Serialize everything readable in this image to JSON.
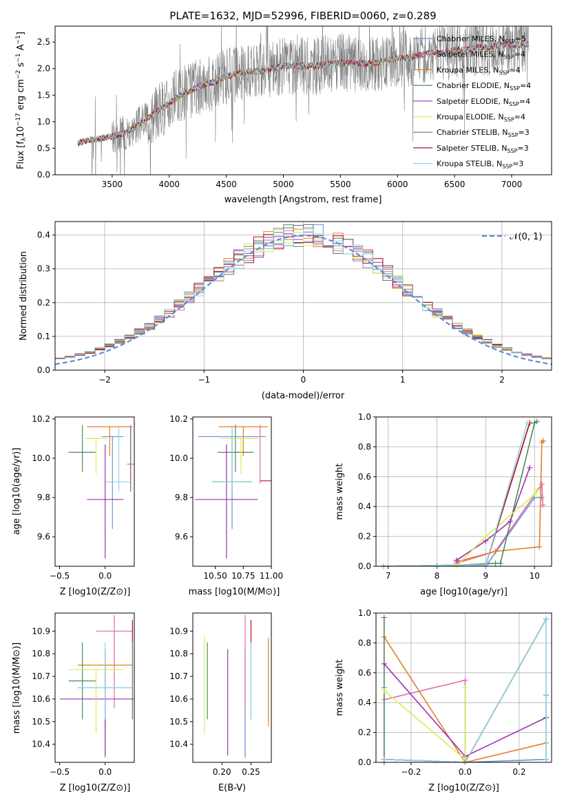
{
  "figure": {
    "title": "PLATE=1632, MJD=52996, FIBERID=0060, z=0.289"
  },
  "colors": {
    "Chabrier MILES": "#6c8ed4",
    "Salpeter MILES": "#e06aa8",
    "Kroupa MILES": "#e67e22",
    "Chabrier ELODIE": "#4e8a5a",
    "Salpeter ELODIE": "#9b30b0",
    "Kroupa ELODIE": "#d4ee52",
    "Chabrier STELIB": "#6e6e6e",
    "Salpeter STELIB": "#b01020",
    "Kroupa STELIB": "#8fd6e6"
  },
  "chart_data": [
    {
      "type": "line",
      "id": "spectrum",
      "title": "PLATE=1632, MJD=52996, FIBERID=0060, z=0.289",
      "xlabel": "wavelength [Angstrom, rest frame]",
      "ylabel": "Flux [f_λ 10^-17 erg cm^-2 s^-1 A^-1]",
      "xlim": [
        3000,
        7350
      ],
      "ylim": [
        0,
        2.8
      ],
      "xticks": [
        "3500",
        "4000",
        "4500",
        "5000",
        "5500",
        "6000",
        "6500",
        "7000"
      ],
      "yticks": [
        "0.0",
        "0.5",
        "1.0",
        "1.5",
        "2.0",
        "2.5"
      ],
      "legend_position": "upper-right",
      "data_series": {
        "name": "data",
        "x": [
          3200,
          3300,
          3400,
          3500,
          3600,
          3700,
          3800,
          3900,
          4000,
          4100,
          4200,
          4300,
          4400,
          4500,
          4600,
          4700,
          4800,
          4900,
          5000,
          5100,
          5200,
          5300,
          5400,
          5500,
          5600,
          5700,
          5800,
          5900,
          6000,
          6100,
          6200,
          6300,
          6400,
          6500,
          6600,
          6700,
          6800,
          6900,
          7000,
          7100
        ],
        "y": [
          0.6,
          0.65,
          0.68,
          0.72,
          0.78,
          0.9,
          1.05,
          1.2,
          1.35,
          1.5,
          1.6,
          1.7,
          1.75,
          1.85,
          1.9,
          1.95,
          1.95,
          2.0,
          2.05,
          2.05,
          2.05,
          2.05,
          2.1,
          2.1,
          2.1,
          2.1,
          2.1,
          2.15,
          2.2,
          2.2,
          2.25,
          2.3,
          2.3,
          2.35,
          2.35,
          2.4,
          2.4,
          2.45,
          2.45,
          2.45
        ]
      },
      "series": [
        {
          "name": "Chabrier MILES",
          "nssp": "5"
        },
        {
          "name": "Salpeter MILES",
          "nssp": "4"
        },
        {
          "name": "Kroupa MILES",
          "nssp": "4"
        },
        {
          "name": "Chabrier ELODIE",
          "nssp": "4"
        },
        {
          "name": "Salpeter ELODIE",
          "nssp": "4"
        },
        {
          "name": "Kroupa ELODIE",
          "nssp": "4"
        },
        {
          "name": "Chabrier STELIB",
          "nssp": "3"
        },
        {
          "name": "Salpeter STELIB",
          "nssp": "3"
        },
        {
          "name": "Kroupa STELIB",
          "nssp": "3"
        }
      ]
    },
    {
      "type": "line",
      "id": "residuals",
      "xlabel": "(data-model)/error",
      "ylabel": "Normed distribution",
      "xlim": [
        -2.5,
        2.5
      ],
      "ylim": [
        0,
        0.44
      ],
      "xticks": [
        "−2",
        "−1",
        "0",
        "1",
        "2"
      ],
      "yticks": [
        "0.0",
        "0.1",
        "0.2",
        "0.3",
        "0.4"
      ],
      "legend": "𝒩(0, 1)",
      "grid": true,
      "bin_width": 0.1
    },
    {
      "type": "scatter",
      "id": "age_vs_Z",
      "xlabel": "Z [log10(Z/Z⊙)]",
      "ylabel": "age [log10(age/yr)]",
      "xlim": [
        -0.55,
        0.32
      ],
      "ylim": [
        9.45,
        10.21
      ],
      "xticks": [
        "−0.5",
        "0.0"
      ],
      "yticks": [
        "9.6",
        "9.8",
        "10.0",
        "10.2"
      ],
      "points": [
        {
          "model": "Chabrier MILES",
          "x": 0.08,
          "y": 10.11,
          "xerr": 0.12,
          "yerr_lo": 0.47,
          "yerr_hi": 0.0
        },
        {
          "model": "Salpeter MILES",
          "x": 0.28,
          "y": 9.97,
          "xerr": 0.04,
          "yerr_lo": 0.1,
          "yerr_hi": 0.2
        },
        {
          "model": "Kroupa MILES",
          "x": 0.05,
          "y": 10.16,
          "xerr": 0.25,
          "yerr_lo": 0.15,
          "yerr_hi": 0.0
        },
        {
          "model": "Chabrier ELODIE",
          "x": -0.25,
          "y": 10.03,
          "xerr": 0.15,
          "yerr_lo": 0.1,
          "yerr_hi": 0.14
        },
        {
          "model": "Salpeter ELODIE",
          "x": 0.0,
          "y": 9.79,
          "xerr": 0.2,
          "yerr_lo": 0.3,
          "yerr_hi": 0.28
        },
        {
          "model": "Kroupa ELODIE",
          "x": -0.1,
          "y": 10.1,
          "xerr": 0.12,
          "yerr_lo": 0.18,
          "yerr_hi": 0.0
        },
        {
          "model": "Chabrier STELIB",
          "x": 0.28,
          "y": 9.88,
          "xerr": 0.0,
          "yerr_lo": 0.05,
          "yerr_hi": 0.28
        },
        {
          "model": "Salpeter STELIB",
          "x": 0.3,
          "y": 9.8,
          "xerr": 0.0,
          "yerr_lo": 0.0,
          "yerr_hi": 0.0
        },
        {
          "model": "Kroupa STELIB",
          "x": 0.15,
          "y": 9.88,
          "xerr": 0.14,
          "yerr_lo": 0.05,
          "yerr_hi": 0.28
        }
      ]
    },
    {
      "type": "scatter",
      "id": "age_vs_mass",
      "xlabel": "mass [log10(M/M⊙)]",
      "ylabel": "",
      "xlim": [
        10.3,
        11.0
      ],
      "ylim": [
        9.45,
        10.21
      ],
      "xticks": [
        "10.50",
        "10.75",
        "11.00"
      ],
      "yticks": [
        "9.6",
        "9.8",
        "10.0",
        "10.2"
      ],
      "points": [
        {
          "model": "Chabrier MILES",
          "x": 10.65,
          "y": 10.11,
          "xerr": 0.3,
          "yerr_lo": 0.47,
          "yerr_hi": 0.0
        },
        {
          "model": "Salpeter MILES",
          "x": 10.9,
          "y": 9.97,
          "xerr": 0.0,
          "yerr_lo": 0.1,
          "yerr_hi": 0.2
        },
        {
          "model": "Kroupa MILES",
          "x": 10.75,
          "y": 10.16,
          "xerr": 0.22,
          "yerr_lo": 0.15,
          "yerr_hi": 0.0
        },
        {
          "model": "Chabrier ELODIE",
          "x": 10.68,
          "y": 10.03,
          "xerr": 0.16,
          "yerr_lo": 0.1,
          "yerr_hi": 0.14
        },
        {
          "model": "Salpeter ELODIE",
          "x": 10.6,
          "y": 9.79,
          "xerr": 0.28,
          "yerr_lo": 0.3,
          "yerr_hi": 0.28
        },
        {
          "model": "Kroupa ELODIE",
          "x": 10.73,
          "y": 10.1,
          "xerr": 0.18,
          "yerr_lo": 0.18,
          "yerr_hi": 0.0
        },
        {
          "model": "Chabrier STELIB",
          "x": 10.65,
          "y": 9.88,
          "xerr": 0.18,
          "yerr_lo": 0.05,
          "yerr_hi": 0.28
        },
        {
          "model": "Salpeter STELIB",
          "x": 10.95,
          "y": 9.885,
          "xerr": 0.05,
          "yerr_lo": 0.0,
          "yerr_hi": 0.0
        },
        {
          "model": "Kroupa STELIB",
          "x": 10.65,
          "y": 9.88,
          "xerr": 0.18,
          "yerr_lo": 0.05,
          "yerr_hi": 0.28
        }
      ]
    },
    {
      "type": "line",
      "id": "mass_weight_vs_age",
      "xlabel": "age [log10(age/yr)]",
      "ylabel": "mass weight",
      "xlim": [
        6.75,
        10.35
      ],
      "ylim": [
        0,
        1.0
      ],
      "xticks": [
        "7",
        "8",
        "9",
        "10"
      ],
      "yticks": [
        "0.0",
        "0.2",
        "0.4",
        "0.6",
        "0.8",
        "1.0"
      ],
      "grid": true,
      "series": [
        {
          "name": "Chabrier MILES",
          "x": [
            8.0,
            9.0,
            10.0,
            10.15
          ],
          "y": [
            0.0,
            0.0,
            0.46,
            0.46
          ]
        },
        {
          "name": "Salpeter MILES",
          "x": [
            8.4,
            9.2,
            10.15,
            10.17
          ],
          "y": [
            0.03,
            0.1,
            0.55,
            0.41
          ]
        },
        {
          "name": "Kroupa MILES",
          "x": [
            8.4,
            9.2,
            10.1,
            10.15,
            10.18
          ],
          "y": [
            0.02,
            0.1,
            0.13,
            0.83,
            0.84
          ]
        },
        {
          "name": "Chabrier ELODIE",
          "x": [
            8.0,
            9.2,
            9.3,
            10.0,
            10.05
          ],
          "y": [
            0.0,
            0.02,
            0.02,
            0.96,
            0.97
          ]
        },
        {
          "name": "Salpeter ELODIE",
          "x": [
            8.4,
            9.0,
            9.5,
            9.9
          ],
          "y": [
            0.04,
            0.17,
            0.3,
            0.66
          ]
        },
        {
          "name": "Kroupa ELODIE",
          "x": [
            8.4,
            9.0,
            10.0,
            10.05
          ],
          "y": [
            0.0,
            0.2,
            0.48,
            0.51
          ]
        },
        {
          "name": "Chabrier STELIB",
          "x": [
            6.9,
            9.0,
            9.9
          ],
          "y": [
            0.0,
            0.01,
            0.96
          ]
        },
        {
          "name": "Salpeter STELIB",
          "x": [
            6.9,
            9.0,
            9.9
          ],
          "y": [
            0.0,
            0.01,
            0.96
          ]
        },
        {
          "name": "Kroupa STELIB",
          "x": [
            6.9,
            9.0,
            9.85
          ],
          "y": [
            0.0,
            0.01,
            0.96
          ]
        }
      ]
    },
    {
      "type": "scatter",
      "id": "mass_vs_Z",
      "xlabel": "Z [log10(Z/Z⊙)]",
      "ylabel": "mass [log10(M/M⊙)]",
      "xlim": [
        -0.55,
        0.32
      ],
      "ylim": [
        10.32,
        10.98
      ],
      "xticks": [
        "−0.5",
        "0.0"
      ],
      "yticks": [
        "10.4",
        "10.5",
        "10.6",
        "10.7",
        "10.8",
        "10.9"
      ],
      "points": [
        {
          "model": "Chabrier MILES",
          "x": 0.0,
          "y": 10.65,
          "xerr": 0.3,
          "yerr_lo": 0.31,
          "yerr_hi": 0.17
        },
        {
          "model": "Salpeter MILES",
          "x": 0.1,
          "y": 10.9,
          "xerr": 0.2,
          "yerr_lo": 0.34,
          "yerr_hi": 0.07
        },
        {
          "model": "Kroupa MILES",
          "x": 0.0,
          "y": 10.75,
          "xerr": 0.3,
          "yerr_lo": 0.27,
          "yerr_hi": 0.0
        },
        {
          "model": "Chabrier ELODIE",
          "x": -0.25,
          "y": 10.68,
          "xerr": 0.15,
          "yerr_lo": 0.17,
          "yerr_hi": 0.17
        },
        {
          "model": "Salpeter ELODIE",
          "x": 0.0,
          "y": 10.6,
          "xerr": 0.5,
          "yerr_lo": 0.25,
          "yerr_hi": 0.22
        },
        {
          "model": "Kroupa ELODIE",
          "x": -0.1,
          "y": 10.73,
          "xerr": 0.3,
          "yerr_lo": 0.28,
          "yerr_hi": 0.0
        },
        {
          "model": "Chabrier STELIB",
          "x": 0.3,
          "y": 10.65,
          "xerr": 0.0,
          "yerr_lo": 0.14,
          "yerr_hi": 0.2
        },
        {
          "model": "Salpeter STELIB",
          "x": 0.3,
          "y": 10.95,
          "xerr": 0.0,
          "yerr_lo": 0.1,
          "yerr_hi": 0.0
        },
        {
          "model": "Kroupa STELIB",
          "x": 0.0,
          "y": 10.65,
          "xerr": 0.3,
          "yerr_lo": 0.14,
          "yerr_hi": 0.2
        }
      ]
    },
    {
      "type": "scatter",
      "id": "mass_vs_EBV",
      "xlabel": "E(B-V)",
      "ylabel": "",
      "xlim": [
        0.15,
        0.285
      ],
      "ylim": [
        10.32,
        10.98
      ],
      "xticks": [
        "0.20",
        "0.25"
      ],
      "yticks": [
        "10.4",
        "10.5",
        "10.6",
        "10.7",
        "10.8",
        "10.9"
      ],
      "points": [
        {
          "model": "Chabrier MILES",
          "x": 0.24,
          "y": 10.65,
          "yerr_lo": 0.31,
          "yerr_hi": 0.17
        },
        {
          "model": "Salpeter MILES",
          "x": 0.24,
          "y": 10.9,
          "yerr_lo": 0.34,
          "yerr_hi": 0.07
        },
        {
          "model": "Kroupa MILES",
          "x": 0.28,
          "y": 10.75,
          "yerr_lo": 0.27,
          "yerr_hi": 0.12
        },
        {
          "model": "Chabrier ELODIE",
          "x": 0.175,
          "y": 10.68,
          "yerr_lo": 0.17,
          "yerr_hi": 0.17
        },
        {
          "model": "Salpeter ELODIE",
          "x": 0.21,
          "y": 10.6,
          "yerr_lo": 0.25,
          "yerr_hi": 0.22
        },
        {
          "model": "Kroupa ELODIE",
          "x": 0.17,
          "y": 10.73,
          "yerr_lo": 0.28,
          "yerr_hi": 0.15
        },
        {
          "model": "Chabrier STELIB",
          "x": 0.25,
          "y": 10.65,
          "yerr_lo": 0.14,
          "yerr_hi": 0.2
        },
        {
          "model": "Salpeter STELIB",
          "x": 0.25,
          "y": 10.95,
          "yerr_lo": 0.1,
          "yerr_hi": 0.0
        },
        {
          "model": "Kroupa STELIB",
          "x": 0.25,
          "y": 10.65,
          "yerr_lo": 0.14,
          "yerr_hi": 0.2
        }
      ]
    },
    {
      "type": "line",
      "id": "mass_weight_vs_Z",
      "xlabel": "Z [log10(Z/Z⊙)]",
      "ylabel": "mass weight",
      "xlim": [
        -0.33,
        0.32
      ],
      "ylim": [
        0,
        1.0
      ],
      "xticks": [
        "−0.2",
        "0.0",
        "0.2"
      ],
      "yticks": [
        "0.0",
        "0.2",
        "0.4",
        "0.6",
        "0.8",
        "1.0"
      ],
      "grid": true,
      "series": [
        {
          "name": "Chabrier MILES",
          "x": [
            -0.3,
            -0.3,
            0.0,
            0.3,
            0.3
          ],
          "y": [
            0.5,
            0.02,
            0.0,
            0.02,
            0.45
          ]
        },
        {
          "name": "Salpeter MILES",
          "x": [
            -0.3,
            0.0,
            0.0
          ],
          "y": [
            0.42,
            0.55,
            0.03
          ]
        },
        {
          "name": "Kroupa MILES",
          "x": [
            -0.3,
            0.0,
            0.3
          ],
          "y": [
            0.84,
            0.0,
            0.13
          ]
        },
        {
          "name": "Chabrier ELODIE",
          "x": [
            -0.3,
            -0.3
          ],
          "y": [
            0.97,
            0.0
          ]
        },
        {
          "name": "Salpeter ELODIE",
          "x": [
            -0.3,
            0.0,
            0.3
          ],
          "y": [
            0.66,
            0.04,
            0.3
          ]
        },
        {
          "name": "Kroupa ELODIE",
          "x": [
            -0.3,
            0.0,
            0.0
          ],
          "y": [
            0.48,
            0.02,
            0.5
          ]
        },
        {
          "name": "Chabrier STELIB",
          "x": [
            -0.3,
            0.0,
            0.3,
            0.3
          ],
          "y": [
            0.02,
            0.0,
            0.96,
            0.02
          ]
        },
        {
          "name": "Salpeter STELIB",
          "x": [
            -0.3,
            0.0,
            0.3
          ],
          "y": [
            0.02,
            0.0,
            0.96
          ]
        },
        {
          "name": "Kroupa STELIB",
          "x": [
            -0.3,
            0.0,
            0.3,
            0.3
          ],
          "y": [
            0.02,
            0.0,
            0.96,
            0.02
          ]
        }
      ]
    }
  ]
}
